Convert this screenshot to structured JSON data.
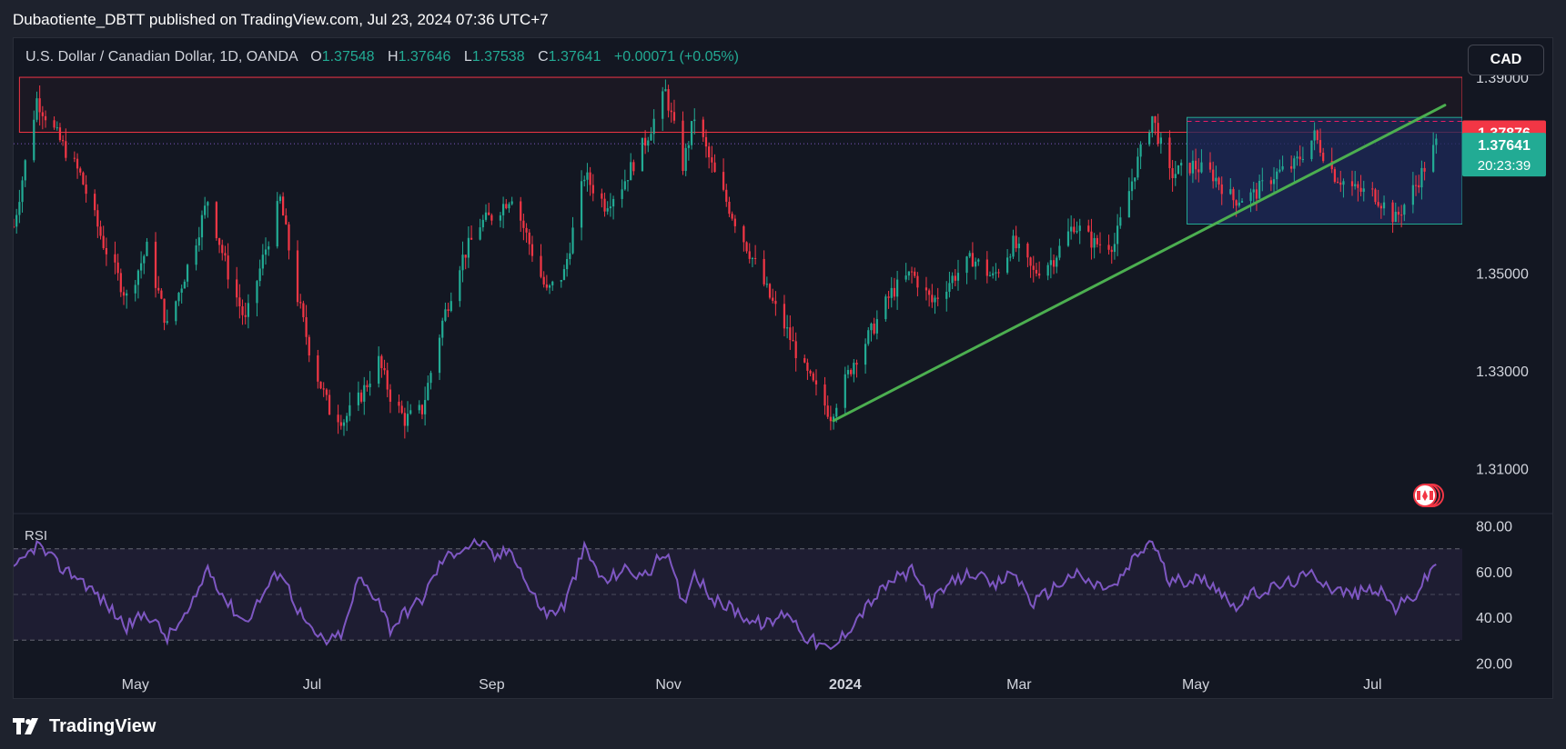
{
  "publisher_line": "Dubaotiente_DBTT published on TradingView.com, Jul 23, 2024 07:36 UTC+7",
  "legend": {
    "symbol": "U.S. Dollar / Canadian Dollar, 1D, OANDA",
    "o_label": "O",
    "o_value": "1.37548",
    "h_label": "H",
    "h_value": "1.37646",
    "l_label": "L",
    "l_value": "1.37538",
    "c_label": "C",
    "c_value": "1.37641",
    "change": "+0.00071 (+0.05%)"
  },
  "currency_button": "CAD",
  "footer_brand": "TradingView",
  "colors": {
    "up": "#22ab94",
    "down": "#f23645",
    "rsi": "#7e57c2",
    "trendline": "#4caf50",
    "resistance": "#f23645",
    "range_box": "#1e2a5a"
  },
  "chart_data": {
    "type": "candlestick",
    "price_axis": {
      "ticks": [
        "1.39000",
        "1.35000",
        "1.33000",
        "1.31000"
      ],
      "tick_values": [
        1.39,
        1.35,
        1.33,
        1.31
      ],
      "range": [
        1.301,
        1.398
      ]
    },
    "time_axis": {
      "ticks": [
        "May",
        "Jul",
        "Sep",
        "Nov",
        "2024",
        "Mar",
        "May",
        "Jul"
      ],
      "tick_dates": [
        "2023-05-01",
        "2023-07-01",
        "2023-09-01",
        "2023-11-01",
        "2024-01-01",
        "2024-03-01",
        "2024-05-01",
        "2024-07-01"
      ],
      "range": [
        "2023-03-20",
        "2024-08-01"
      ]
    },
    "price_labels": [
      {
        "value": 1.37876,
        "text": "1.37876",
        "kind": "resistance"
      },
      {
        "value": 1.37641,
        "text": "1.37641",
        "kind": "last",
        "countdown": "20:23:39"
      }
    ],
    "resistance_zone": {
      "from": 1.37876,
      "to": 1.39,
      "start": "2023-03-22",
      "end": "2024-08-01"
    },
    "range_box": {
      "top": 1.3818,
      "bottom": 1.36,
      "mid": 1.381,
      "start": "2024-04-28",
      "end": "2024-08-01"
    },
    "trendline": {
      "start_date": "2023-12-28",
      "start_value": 1.3198,
      "end_date": "2024-07-26",
      "end_value": 1.3843
    },
    "price_path": [
      [
        "2023-03-20",
        1.3595
      ],
      [
        "2023-03-28",
        1.3855
      ],
      [
        "2023-04-05",
        1.377
      ],
      [
        "2023-04-12",
        1.37
      ],
      [
        "2023-04-20",
        1.356
      ],
      [
        "2023-04-28",
        1.345
      ],
      [
        "2023-05-05",
        1.355
      ],
      [
        "2023-05-12",
        1.339
      ],
      [
        "2023-05-20",
        1.353
      ],
      [
        "2023-05-26",
        1.365
      ],
      [
        "2023-06-02",
        1.35
      ],
      [
        "2023-06-08",
        1.34
      ],
      [
        "2023-06-15",
        1.355
      ],
      [
        "2023-06-20",
        1.365
      ],
      [
        "2023-06-26",
        1.345
      ],
      [
        "2023-07-01",
        1.332
      ],
      [
        "2023-07-07",
        1.322
      ],
      [
        "2023-07-12",
        1.32
      ],
      [
        "2023-07-17",
        1.324
      ],
      [
        "2023-07-24",
        1.332
      ],
      [
        "2023-07-28",
        1.325
      ],
      [
        "2023-08-02",
        1.32
      ],
      [
        "2023-08-08",
        1.322
      ],
      [
        "2023-08-15",
        1.34
      ],
      [
        "2023-08-21",
        1.352
      ],
      [
        "2023-08-28",
        1.36
      ],
      [
        "2023-09-02",
        1.362
      ],
      [
        "2023-09-08",
        1.366
      ],
      [
        "2023-09-14",
        1.356
      ],
      [
        "2023-09-20",
        1.346
      ],
      [
        "2023-09-26",
        1.35
      ],
      [
        "2023-10-03",
        1.37
      ],
      [
        "2023-10-10",
        1.364
      ],
      [
        "2023-10-16",
        1.368
      ],
      [
        "2023-10-24",
        1.377
      ],
      [
        "2023-10-31",
        1.387
      ],
      [
        "2023-11-06",
        1.372
      ],
      [
        "2023-11-10",
        1.382
      ],
      [
        "2023-11-17",
        1.37
      ],
      [
        "2023-11-23",
        1.362
      ],
      [
        "2023-11-30",
        1.353
      ],
      [
        "2023-12-06",
        1.345
      ],
      [
        "2023-12-12",
        1.338
      ],
      [
        "2023-12-18",
        1.33
      ],
      [
        "2023-12-27",
        1.321
      ],
      [
        "2024-01-04",
        1.332
      ],
      [
        "2024-01-10",
        1.338
      ],
      [
        "2024-01-17",
        1.346
      ],
      [
        "2024-01-24",
        1.35
      ],
      [
        "2024-01-31",
        1.344
      ],
      [
        "2024-02-07",
        1.349
      ],
      [
        "2024-02-14",
        1.353
      ],
      [
        "2024-02-21",
        1.349
      ],
      [
        "2024-02-28",
        1.356
      ],
      [
        "2024-03-06",
        1.35
      ],
      [
        "2024-03-13",
        1.353
      ],
      [
        "2024-03-20",
        1.36
      ],
      [
        "2024-03-27",
        1.356
      ],
      [
        "2024-04-03",
        1.356
      ],
      [
        "2024-04-10",
        1.371
      ],
      [
        "2024-04-16",
        1.382
      ],
      [
        "2024-04-22",
        1.37
      ],
      [
        "2024-04-30",
        1.372
      ],
      [
        "2024-05-07",
        1.37
      ],
      [
        "2024-05-14",
        1.365
      ],
      [
        "2024-05-21",
        1.366
      ],
      [
        "2024-05-28",
        1.37
      ],
      [
        "2024-06-04",
        1.372
      ],
      [
        "2024-06-11",
        1.378
      ],
      [
        "2024-06-18",
        1.37
      ],
      [
        "2024-06-25",
        1.367
      ],
      [
        "2024-07-02",
        1.366
      ],
      [
        "2024-07-09",
        1.361
      ],
      [
        "2024-07-16",
        1.368
      ],
      [
        "2024-07-23",
        1.3764
      ]
    ],
    "rsi": {
      "label": "RSI",
      "ticks": [
        "80.00",
        "60.00",
        "40.00",
        "20.00"
      ],
      "tick_values": [
        80,
        60,
        40,
        20
      ],
      "range": [
        15,
        85
      ],
      "bands": [
        70,
        50,
        30
      ],
      "series": [
        [
          "2023-03-20",
          60
        ],
        [
          "2023-03-28",
          72
        ],
        [
          "2023-04-05",
          62
        ],
        [
          "2023-04-12",
          57
        ],
        [
          "2023-04-20",
          47
        ],
        [
          "2023-04-28",
          36
        ],
        [
          "2023-05-05",
          42
        ],
        [
          "2023-05-12",
          31
        ],
        [
          "2023-05-20",
          43
        ],
        [
          "2023-05-26",
          62
        ],
        [
          "2023-06-02",
          46
        ],
        [
          "2023-06-08",
          38
        ],
        [
          "2023-06-15",
          52
        ],
        [
          "2023-06-20",
          61
        ],
        [
          "2023-06-26",
          44
        ],
        [
          "2023-07-01",
          33
        ],
        [
          "2023-07-07",
          29
        ],
        [
          "2023-07-12",
          34
        ],
        [
          "2023-07-17",
          57
        ],
        [
          "2023-07-24",
          48
        ],
        [
          "2023-07-28",
          35
        ],
        [
          "2023-08-02",
          42
        ],
        [
          "2023-08-08",
          48
        ],
        [
          "2023-08-15",
          65
        ],
        [
          "2023-08-21",
          70
        ],
        [
          "2023-08-28",
          73
        ],
        [
          "2023-09-02",
          66
        ],
        [
          "2023-09-08",
          70
        ],
        [
          "2023-09-14",
          52
        ],
        [
          "2023-09-20",
          41
        ],
        [
          "2023-09-26",
          45
        ],
        [
          "2023-10-03",
          70
        ],
        [
          "2023-10-10",
          55
        ],
        [
          "2023-10-16",
          61
        ],
        [
          "2023-10-24",
          58
        ],
        [
          "2023-10-31",
          69
        ],
        [
          "2023-11-06",
          46
        ],
        [
          "2023-11-10",
          60
        ],
        [
          "2023-11-17",
          47
        ],
        [
          "2023-11-23",
          44
        ],
        [
          "2023-11-30",
          38
        ],
        [
          "2023-12-06",
          37
        ],
        [
          "2023-12-12",
          43
        ],
        [
          "2023-12-18",
          32
        ],
        [
          "2023-12-27",
          25
        ],
        [
          "2024-01-04",
          38
        ],
        [
          "2024-01-10",
          47
        ],
        [
          "2024-01-17",
          56
        ],
        [
          "2024-01-24",
          60
        ],
        [
          "2024-01-31",
          47
        ],
        [
          "2024-02-07",
          55
        ],
        [
          "2024-02-14",
          60
        ],
        [
          "2024-02-21",
          53
        ],
        [
          "2024-02-28",
          60
        ],
        [
          "2024-03-06",
          46
        ],
        [
          "2024-03-13",
          53
        ],
        [
          "2024-03-20",
          59
        ],
        [
          "2024-03-27",
          54
        ],
        [
          "2024-04-03",
          53
        ],
        [
          "2024-04-10",
          66
        ],
        [
          "2024-04-16",
          74
        ],
        [
          "2024-04-22",
          55
        ],
        [
          "2024-04-30",
          57
        ],
        [
          "2024-05-07",
          55
        ],
        [
          "2024-05-14",
          45
        ],
        [
          "2024-05-21",
          50
        ],
        [
          "2024-05-28",
          53
        ],
        [
          "2024-06-04",
          56
        ],
        [
          "2024-06-11",
          59
        ],
        [
          "2024-06-18",
          52
        ],
        [
          "2024-06-25",
          50
        ],
        [
          "2024-07-02",
          53
        ],
        [
          "2024-07-09",
          44
        ],
        [
          "2024-07-16",
          50
        ],
        [
          "2024-07-23",
          64
        ]
      ]
    }
  }
}
